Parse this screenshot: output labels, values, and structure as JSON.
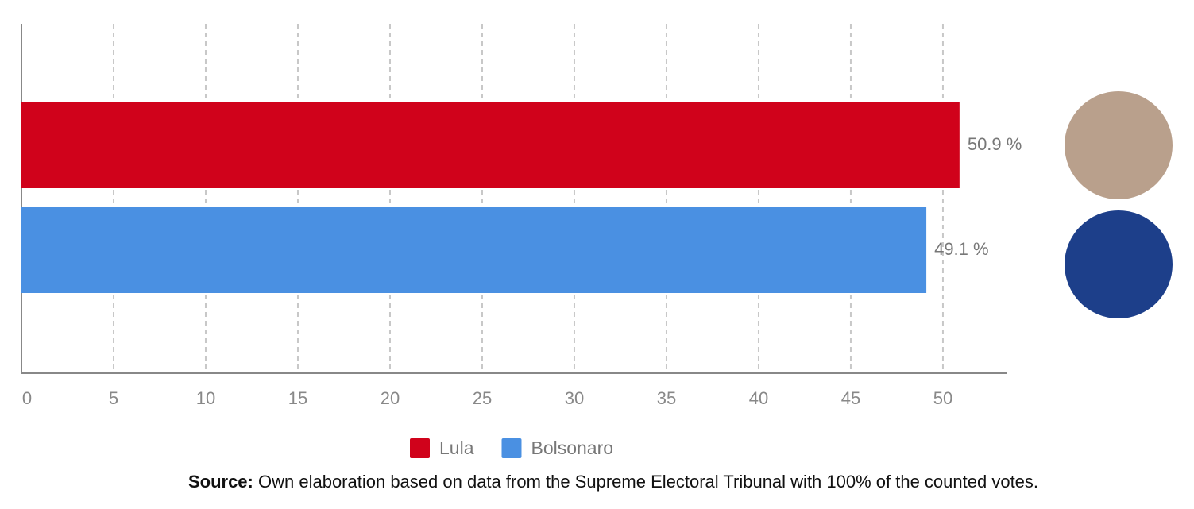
{
  "chart_data": {
    "type": "hbar",
    "series": [
      {
        "name": "Lula",
        "color": "#d0021b",
        "values": [
          50.9
        ],
        "value_labels": [
          "50.9 %"
        ]
      },
      {
        "name": "Bolsonaro",
        "color": "#4a90e2",
        "values": [
          49.1
        ],
        "value_labels": [
          "49.1 %"
        ]
      }
    ],
    "xlim": [
      0,
      53.45
    ],
    "xticks": [
      0,
      5,
      10,
      15,
      20,
      25,
      30,
      35,
      40,
      45,
      50
    ],
    "grid": true,
    "legend": "bottom",
    "source": {
      "label": "Source:",
      "text": "Own elaboration based on data from the Supreme Electoral Tribunal with 100% of the counted votes."
    }
  }
}
